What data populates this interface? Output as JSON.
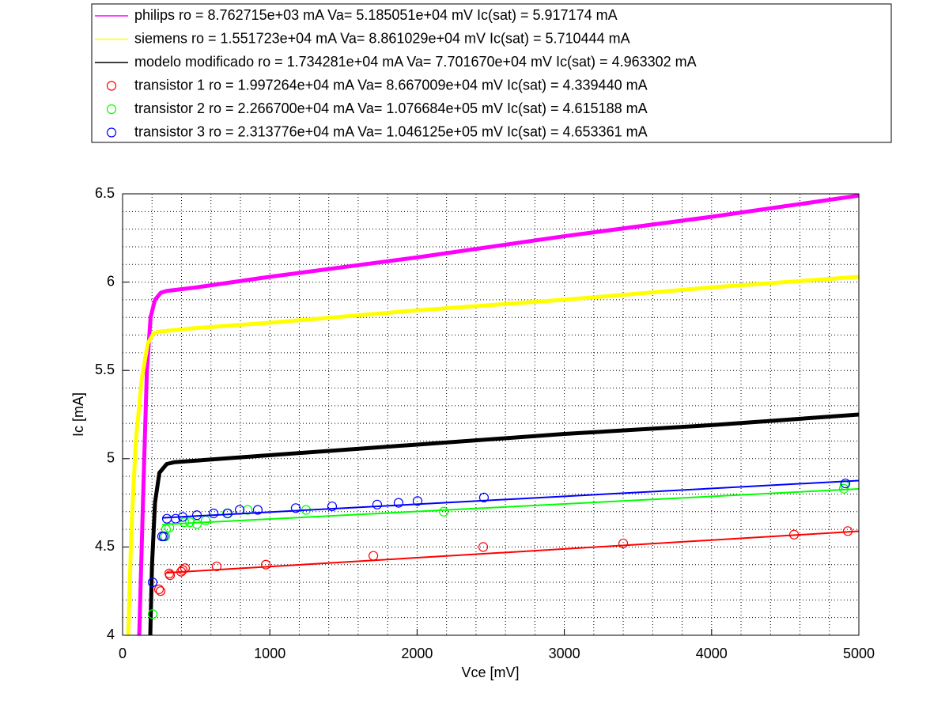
{
  "chart_data": {
    "type": "line",
    "xlabel": "Vce [mV]",
    "ylabel": "Ic [mA]",
    "xlim": [
      0,
      5000
    ],
    "ylim": [
      4,
      6.5
    ],
    "xticks": [
      0,
      1000,
      2000,
      3000,
      4000,
      5000
    ],
    "yticks": [
      4,
      4.5,
      5,
      5.5,
      6,
      6.5
    ],
    "xminorticks": [
      200,
      400,
      600,
      800,
      1200,
      1400,
      1600,
      1800,
      2200,
      2400,
      2600,
      2800,
      3200,
      3400,
      3600,
      3800,
      4200,
      4400,
      4600,
      4800
    ],
    "yminorticks": [
      4.1,
      4.2,
      4.3,
      4.4,
      4.6,
      4.7,
      4.8,
      4.9,
      5.1,
      5.2,
      5.3,
      5.4,
      5.6,
      5.7,
      5.8,
      5.9,
      6.1,
      6.2,
      6.3,
      6.4
    ],
    "grid": true,
    "series": [
      {
        "name": "philips ro = 8.762715e+03 mA  Va= 5.185051e+04 mV Ic(sat) = 5.917174 mA",
        "color": "#ff00ff",
        "mode": "lines",
        "width": 5,
        "x": [
          113,
          140,
          165,
          190,
          220,
          260,
          300,
          500,
          1000,
          2000,
          3000,
          4000,
          5000
        ],
        "values": [
          4.0,
          4.8,
          5.5,
          5.8,
          5.9,
          5.94,
          5.95,
          5.97,
          6.03,
          6.14,
          6.26,
          6.37,
          6.49
        ]
      },
      {
        "name": "siemens ro = 1.551723e+04 mA  Va= 8.861029e+04 mV Ic(sat) = 5.710444 mA",
        "color": "#ffff00",
        "mode": "lines",
        "width": 5,
        "x": [
          38,
          60,
          90,
          130,
          170,
          210,
          250,
          500,
          1000,
          2000,
          3000,
          4000,
          5000
        ],
        "values": [
          4.0,
          4.6,
          5.1,
          5.45,
          5.65,
          5.71,
          5.72,
          5.74,
          5.77,
          5.84,
          5.9,
          5.97,
          6.03
        ]
      },
      {
        "name": "modelo modificado ro = 1.734281e+04 mA  Va= 7.701670e+04 mV Ic(sat) = 4.963302 mA",
        "color": "#000000",
        "mode": "lines",
        "width": 5,
        "x": [
          188,
          200,
          220,
          250,
          300,
          350,
          1000,
          2000,
          3000,
          4000,
          5000
        ],
        "values": [
          4.0,
          4.4,
          4.75,
          4.92,
          4.97,
          4.98,
          5.02,
          5.08,
          5.14,
          5.19,
          5.25
        ]
      },
      {
        "name": "transistor 1 ro = 1.997264e+04 mA  Va= 8.667009e+04 mV Ic(sat) = 4.339440 mA",
        "color": "#ff0000",
        "mode": "markers",
        "x": [
          247,
          258,
          317,
          322,
          398,
          408,
          424,
          639,
          973,
          1703,
          2449,
          3400,
          4560,
          4925
        ],
        "values": [
          4.26,
          4.25,
          4.35,
          4.34,
          4.36,
          4.37,
          4.38,
          4.39,
          4.4,
          4.45,
          4.5,
          4.52,
          4.57,
          4.59
        ]
      },
      {
        "name": "transistor 2 ro = 2.266700e+04 mA  Va= 1.076684e+05 mV Ic(sat) = 4.615188 mA",
        "color": "#00ff00",
        "mode": "markers",
        "x": [
          204,
          290,
          295,
          317,
          419,
          457,
          505,
          564,
          709,
          849,
          1246,
          2181,
          4898,
          4903
        ],
        "values": [
          4.12,
          4.56,
          4.6,
          4.61,
          4.64,
          4.64,
          4.63,
          4.65,
          4.69,
          4.71,
          4.71,
          4.7,
          4.83,
          4.85
        ]
      },
      {
        "name": "transistor 3 ro = 2.313776e+04 mA  Va= 1.046125e+05 mV Ic(sat) = 4.653361 mA",
        "color": "#0000ff",
        "mode": "markers",
        "x": [
          204,
          268,
          279,
          301,
          360,
          408,
          505,
          618,
          714,
          795,
          918,
          1176,
          1423,
          1729,
          1874,
          2003,
          2454,
          4909
        ],
        "values": [
          4.3,
          4.56,
          4.56,
          4.66,
          4.66,
          4.67,
          4.68,
          4.69,
          4.69,
          4.71,
          4.71,
          4.72,
          4.73,
          4.74,
          4.75,
          4.76,
          4.78,
          4.86
        ]
      },
      {
        "color": "#ff0000",
        "mode": "lines",
        "width": 2,
        "x": [
          300,
          5000
        ],
        "values": [
          4.354,
          4.589
        ]
      },
      {
        "color": "#00ff00",
        "mode": "lines",
        "width": 2,
        "x": [
          270,
          5000
        ],
        "values": [
          4.627,
          4.829
        ]
      },
      {
        "color": "#0000ff",
        "mode": "lines",
        "width": 2,
        "x": [
          270,
          5000
        ],
        "values": [
          4.665,
          4.876
        ]
      }
    ]
  }
}
